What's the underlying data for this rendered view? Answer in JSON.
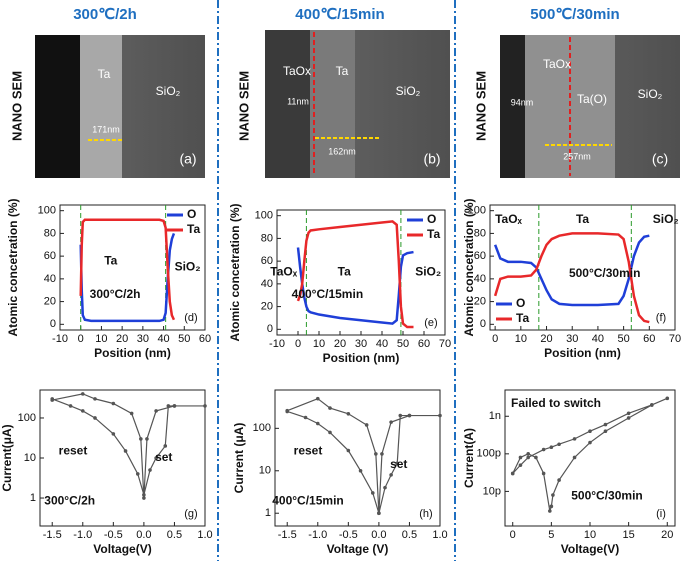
{
  "columns": [
    "300℃/2h",
    "400℃/15min",
    "500℃/30min"
  ],
  "sem_panels": [
    {
      "side_label": "NANO SEM",
      "labels": [
        "Ta",
        "SiO₂",
        "171nm"
      ],
      "panel_label": "(a)"
    },
    {
      "side_label": "NANO SEM",
      "labels": [
        "TaOx",
        "11nm",
        "Ta",
        "SiO₂",
        "162nm"
      ],
      "panel_label": "(b)"
    },
    {
      "side_label": "NANO SEM",
      "labels": [
        "TaOx",
        "94nm",
        "Ta(O)",
        "SiO₂",
        "257nm"
      ],
      "panel_label": "(c)"
    }
  ],
  "chart_data": [
    {
      "type": "line",
      "xlabel": "Position (nm)",
      "ylabel": "Atomic concetration (%)",
      "x": [
        0,
        0.5,
        1,
        2,
        5,
        10,
        20,
        30,
        38,
        40,
        41,
        42,
        43,
        44,
        45
      ],
      "series": [
        {
          "name": "O",
          "color": "#1f3fd8",
          "values": [
            70,
            30,
            8,
            4,
            3,
            3,
            3,
            3,
            3,
            4,
            10,
            40,
            65,
            75,
            80
          ]
        },
        {
          "name": "Ta",
          "color": "#e8282a",
          "values": [
            25,
            70,
            90,
            92,
            92,
            92,
            92,
            92,
            92,
            91,
            85,
            50,
            20,
            8,
            4
          ]
        }
      ],
      "xlim": [
        -10,
        60
      ],
      "xticks": [
        -10,
        0,
        10,
        20,
        30,
        40,
        50,
        60
      ],
      "ylim": [
        -5,
        105
      ],
      "yticks": [
        0,
        20,
        40,
        60,
        80,
        100
      ],
      "boundaries": [
        0,
        41
      ],
      "legend": "upper right",
      "annotations": [
        "Ta",
        "SiO₂",
        "300°C/2h"
      ],
      "panel_label": "(d)"
    },
    {
      "type": "line",
      "xlabel": "Position (nm)",
      "ylabel": "Atomic concetration (%)",
      "x": [
        0,
        1,
        2,
        3,
        4,
        5,
        6,
        10,
        20,
        30,
        40,
        45,
        47,
        48,
        49,
        50,
        52,
        55
      ],
      "series": [
        {
          "name": "O",
          "color": "#1f3fd8",
          "values": [
            72,
            55,
            40,
            28,
            20,
            16,
            15,
            13,
            10,
            8,
            6,
            5,
            8,
            30,
            55,
            65,
            67,
            68
          ]
        },
        {
          "name": "Ta",
          "color": "#e8282a",
          "values": [
            25,
            30,
            40,
            60,
            78,
            85,
            87,
            88,
            90,
            92,
            94,
            95,
            92,
            60,
            20,
            5,
            2,
            2
          ]
        }
      ],
      "xlim": [
        -10,
        70
      ],
      "xticks": [
        -10,
        0,
        10,
        20,
        30,
        40,
        50,
        60,
        70
      ],
      "ylim": [
        -5,
        105
      ],
      "yticks": [
        0,
        20,
        40,
        60,
        80,
        100
      ],
      "boundaries": [
        4,
        49
      ],
      "legend": "upper right",
      "annotations": [
        "TaOₓ",
        "Ta",
        "SiO₂",
        "400°C/15min"
      ],
      "panel_label": "(e)"
    },
    {
      "type": "line",
      "xlabel": "Position (nm)",
      "ylabel": "Atomic concetration (%)",
      "x": [
        0,
        2,
        5,
        10,
        14,
        16,
        18,
        20,
        22,
        25,
        30,
        40,
        48,
        50,
        52,
        54,
        56,
        58,
        60
      ],
      "series": [
        {
          "name": "O",
          "color": "#1f3fd8",
          "values": [
            70,
            58,
            55,
            55,
            54,
            50,
            40,
            30,
            22,
            18,
            17,
            17,
            18,
            25,
            40,
            60,
            72,
            77,
            78
          ]
        },
        {
          "name": "Ta",
          "color": "#e8282a",
          "values": [
            25,
            40,
            42,
            42,
            43,
            48,
            60,
            70,
            75,
            78,
            80,
            80,
            79,
            75,
            55,
            25,
            8,
            3,
            2
          ]
        }
      ],
      "xlim": [
        -2,
        70
      ],
      "xticks": [
        0,
        10,
        20,
        30,
        40,
        50,
        60,
        70
      ],
      "ylim": [
        -5,
        105
      ],
      "yticks": [
        0,
        20,
        40,
        60,
        80,
        100
      ],
      "boundaries": [
        17,
        53
      ],
      "legend": "lower left",
      "annotations": [
        "TaOₓ",
        "Ta",
        "SiO₂",
        "500°C/30min"
      ],
      "panel_label": "(f)"
    },
    {
      "type": "line",
      "log_y": true,
      "xlabel": "Voltage(V)",
      "ylabel": "Current(μA)",
      "x": [
        -1.5,
        -1.2,
        -1.0,
        -0.8,
        -0.5,
        -0.3,
        -0.1,
        0,
        0.1,
        0.2,
        0.35,
        0.4,
        0.5,
        1.0,
        0.5,
        0.2,
        0.05,
        0,
        -0.05,
        -0.2,
        -0.5,
        -0.8,
        -1.0,
        -1.5
      ],
      "series": [
        {
          "color": "#555555",
          "values": [
            300,
            200,
            150,
            100,
            40,
            15,
            4,
            1.2,
            5,
            10,
            20,
            200,
            200,
            200,
            200,
            150,
            30,
            1,
            30,
            130,
            230,
            300,
            400,
            280
          ]
        }
      ],
      "xlim": [
        -1.7,
        1.0
      ],
      "xticks": [
        {
          "value": -1.5,
          "label": "-1.5"
        },
        {
          "value": -1,
          "label": "-1.0"
        },
        {
          "value": -0.5,
          "label": "-0.5"
        },
        {
          "value": 0,
          "label": "0.0"
        },
        {
          "value": 0.5,
          "label": "0.5"
        },
        {
          "value": 1,
          "label": "1.0"
        }
      ],
      "ylim": [
        0.2,
        500
      ],
      "yticks": [
        1,
        10,
        100
      ],
      "annotations": [
        "reset",
        "set",
        "300°C/2h"
      ],
      "panel_label": "(g)"
    },
    {
      "type": "line",
      "log_y": true,
      "xlabel": "Voltage (V)",
      "ylabel": "Current (μA)",
      "x": [
        -1.5,
        -1.2,
        -1.0,
        -0.8,
        -0.5,
        -0.3,
        -0.1,
        0,
        0.1,
        0.2,
        0.3,
        0.35,
        0.5,
        1.0,
        0.5,
        0.2,
        0.05,
        0,
        -0.05,
        -0.2,
        -0.5,
        -0.8,
        -1.0,
        -1.5
      ],
      "series": [
        {
          "color": "#555555",
          "values": [
            250,
            180,
            130,
            80,
            30,
            10,
            3,
            1,
            4,
            8,
            15,
            200,
            200,
            200,
            200,
            140,
            25,
            1,
            25,
            120,
            220,
            300,
            500,
            260
          ]
        }
      ],
      "xlim": [
        -1.7,
        1.0
      ],
      "xticks": [
        {
          "value": -1.5,
          "label": "-1.5"
        },
        {
          "value": -1,
          "label": "-1.0"
        },
        {
          "value": -0.5,
          "label": "-0.5"
        },
        {
          "value": 0,
          "label": "0.0"
        },
        {
          "value": 0.5,
          "label": "0.5"
        },
        {
          "value": 1,
          "label": "1.0"
        }
      ],
      "ylim": [
        0.5,
        800
      ],
      "yticks": [
        1,
        10,
        100
      ],
      "annotations": [
        "reset",
        "set",
        "400°C/15min"
      ],
      "panel_label": "(h)"
    },
    {
      "type": "line",
      "log_y": true,
      "xlabel": "Voltage(V)",
      "ylabel": "Current(A)",
      "x": [
        0,
        1,
        2,
        3,
        4,
        4.8,
        5,
        5.2,
        6,
        8,
        10,
        12,
        15,
        18,
        20,
        18,
        15,
        12,
        10,
        8,
        6,
        5,
        4,
        2,
        1,
        0
      ],
      "series": [
        {
          "color": "#555555",
          "values": [
            3e-11,
            8e-11,
            1e-10,
            8e-11,
            3e-11,
            3e-12,
            4e-12,
            8e-12,
            2e-11,
            8e-11,
            2e-10,
            4e-10,
            9e-10,
            2e-09,
            3e-09,
            2e-09,
            1.2e-09,
            6e-10,
            4e-10,
            2.5e-10,
            1.8e-10,
            1.5e-10,
            1.3e-10,
            8e-11,
            5e-11,
            3e-11
          ]
        }
      ],
      "xlim": [
        -1,
        21
      ],
      "xticks": [
        0,
        5,
        10,
        15,
        20
      ],
      "ylim": [
        1.2e-12,
        5e-09
      ],
      "yticks": [
        {
          "value": 1e-11,
          "label": "10p"
        },
        {
          "value": 1e-10,
          "label": "100p"
        },
        {
          "value": 1e-09,
          "label": "1n"
        }
      ],
      "annotations": [
        "Failed to switch",
        "500°C/30min"
      ],
      "panel_label": "(i)"
    }
  ]
}
